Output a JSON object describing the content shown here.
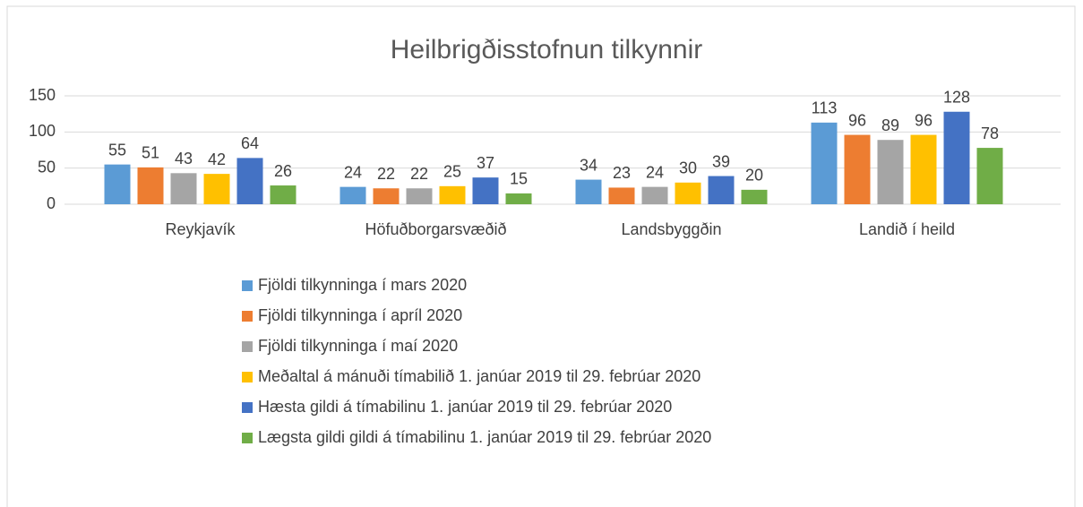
{
  "chart_data": {
    "type": "bar",
    "title": "Heilbrigðisstofnun tilkynnir",
    "categories": [
      "Reykjavík",
      "Höfuðborgarsvæðið",
      "Landsbyggðin",
      "Landið í heild"
    ],
    "series": [
      {
        "name": "Fjöldi tilkynninga í mars 2020",
        "color": "#5b9bd5",
        "values": [
          55,
          24,
          34,
          113
        ]
      },
      {
        "name": "Fjöldi tilkynninga í apríl 2020",
        "color": "#ed7d31",
        "values": [
          51,
          22,
          23,
          96
        ]
      },
      {
        "name": "Fjöldi tilkynninga í maí 2020",
        "color": "#a5a5a5",
        "values": [
          43,
          22,
          24,
          89
        ]
      },
      {
        "name": "Meðaltal á mánuði tímabilið 1. janúar 2019 til 29. febrúar 2020",
        "color": "#ffc000",
        "values": [
          42,
          25,
          30,
          96
        ]
      },
      {
        "name": "Hæsta gildi á tímabilinu 1. janúar 2019 til 29. febrúar 2020",
        "color": "#4472c4",
        "values": [
          64,
          37,
          39,
          128
        ]
      },
      {
        "name": "Lægsta gildi gildi á tímabilinu 1. janúar 2019 til 29. febrúar 2020",
        "color": "#70ad47",
        "values": [
          26,
          15,
          20,
          78
        ]
      }
    ],
    "ylim": [
      0,
      150
    ],
    "yticks": [
      0,
      50,
      100,
      150
    ],
    "grid": true,
    "legend": "bottom"
  }
}
